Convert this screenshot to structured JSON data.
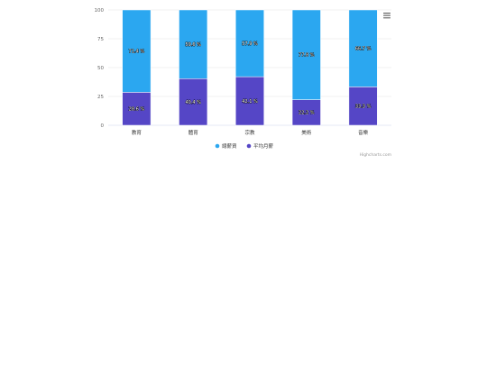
{
  "chart_data": {
    "type": "bar",
    "stacking": "percent",
    "categories": [
      "教育",
      "體育",
      "宗教",
      "美術",
      "音樂"
    ],
    "series": [
      {
        "name": "總薪資",
        "color": "#2ba7f0",
        "values": [
          71.4,
          59.6,
          57.9,
          77.8,
          66.7
        ],
        "labels": [
          "71.4 %",
          "59.6 %",
          "57.9 %",
          "77.8 %",
          "66.7 %"
        ]
      },
      {
        "name": "平均月薪",
        "color": "#5546c6",
        "values": [
          28.6,
          40.4,
          42.1,
          22.2,
          33.3
        ],
        "labels": [
          "28.6 %",
          "40.4 %",
          "42.1 %",
          "22.2 %",
          "33.3 %"
        ]
      }
    ],
    "ylim": [
      0,
      100
    ],
    "yticks": [
      0,
      25,
      50,
      75,
      100
    ],
    "grid": true,
    "legend_position": "bottom-center",
    "credits": "Highcharts.com",
    "menu_icon": "hamburger-menu-icon"
  }
}
